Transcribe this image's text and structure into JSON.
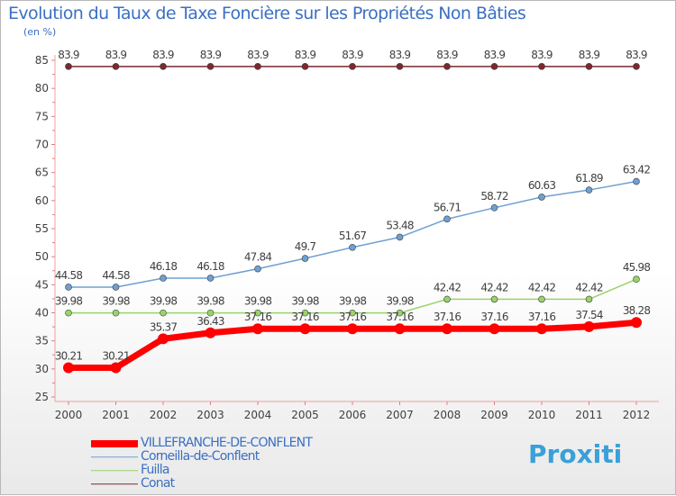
{
  "chart_data": {
    "type": "line",
    "title": "Evolution du Taux de Taxe Foncière sur les Propriétés Non Bâties",
    "ylabel": "(en %)",
    "xlabel": "",
    "ylim": [
      25,
      85
    ],
    "yticks": [
      25,
      30,
      35,
      40,
      45,
      50,
      55,
      60,
      65,
      70,
      75,
      80,
      85
    ],
    "grid": false,
    "legend_position": "bottom-left",
    "categories": [
      "2000",
      "2001",
      "2002",
      "2003",
      "2004",
      "2005",
      "2006",
      "2007",
      "2008",
      "2009",
      "2010",
      "2011",
      "2012"
    ],
    "series": [
      {
        "name": "Conat",
        "color": "#7a2a2e",
        "values": [
          83.9,
          83.9,
          83.9,
          83.9,
          83.9,
          83.9,
          83.9,
          83.9,
          83.9,
          83.9,
          83.9,
          83.9,
          83.9
        ],
        "labels": [
          "83.9",
          "83.9",
          "83.9",
          "83.9",
          "83.9",
          "83.9",
          "83.9",
          "83.9",
          "83.9",
          "83.9",
          "83.9",
          "83.9",
          "83.9"
        ]
      },
      {
        "name": "Corneilla-de-Conflent",
        "color": "#6fa0d2",
        "values": [
          44.58,
          44.58,
          46.18,
          46.18,
          47.84,
          49.7,
          51.67,
          53.48,
          56.71,
          58.72,
          60.63,
          61.89,
          63.42
        ],
        "labels": [
          "44.58",
          "44.58",
          "46.18",
          "46.18",
          "47.84",
          "49.7",
          "51.67",
          "53.48",
          "56.71",
          "58.72",
          "60.63",
          "61.89",
          "63.42"
        ]
      },
      {
        "name": "Fuilla",
        "color": "#99d36a",
        "values": [
          39.98,
          39.98,
          39.98,
          39.98,
          39.98,
          39.98,
          39.98,
          39.98,
          42.42,
          42.42,
          42.42,
          42.42,
          45.98
        ],
        "labels": [
          "39.98",
          "39.98",
          "39.98",
          "39.98",
          "39.98",
          "39.98",
          "39.98",
          "39.98",
          "42.42",
          "42.42",
          "42.42",
          "42.42",
          "45.98"
        ]
      },
      {
        "name": "VILLEFRANCHE-DE-CONFLENT",
        "color": "#ff0000",
        "values": [
          30.21,
          30.21,
          35.37,
          36.43,
          37.16,
          37.16,
          37.16,
          37.16,
          37.16,
          37.16,
          37.16,
          37.54,
          38.28
        ],
        "labels": [
          "30.21",
          "30.21",
          "35.37",
          "36.43",
          "37.16",
          "37.16",
          "37.16",
          "37.16",
          "37.16",
          "37.16",
          "37.16",
          "37.54",
          "38.28"
        ]
      }
    ],
    "legend": [
      {
        "name": "VILLEFRANCHE-DE-CONFLENT",
        "color": "#ff0000"
      },
      {
        "name": "Corneilla-de-Conflent",
        "color": "#6fa0d2"
      },
      {
        "name": "Fuilla",
        "color": "#99d36a"
      },
      {
        "name": "Conat",
        "color": "#7a2a2e"
      }
    ]
  },
  "logo": {
    "text": "Proxiti"
  }
}
